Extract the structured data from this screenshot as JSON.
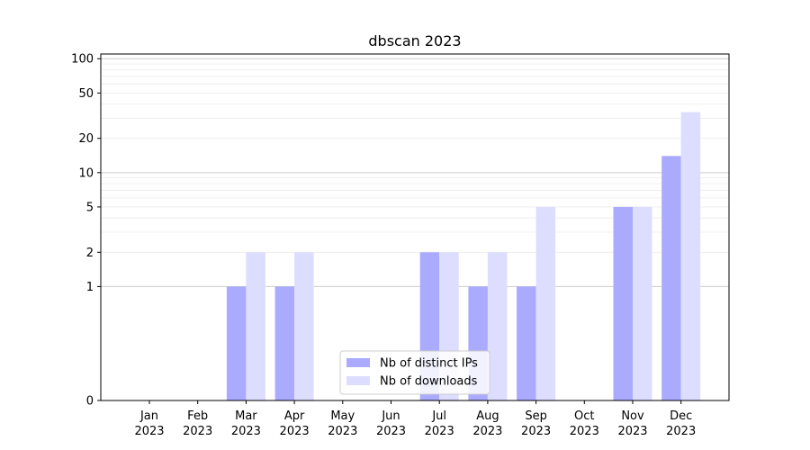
{
  "chart_data": {
    "type": "bar",
    "title": "dbscan 2023",
    "xlabel": "",
    "ylabel": "",
    "yscale": "symlog",
    "ylim": [
      0,
      110
    ],
    "yticks": [
      0,
      1,
      2,
      5,
      10,
      20,
      50,
      100
    ],
    "grid": "y",
    "legend_position": "bottom-center",
    "categories": [
      "Jan\n2023",
      "Feb\n2023",
      "Mar\n2023",
      "Apr\n2023",
      "May\n2023",
      "Jun\n2023",
      "Jul\n2023",
      "Aug\n2023",
      "Sep\n2023",
      "Oct\n2023",
      "Nov\n2023",
      "Dec\n2023"
    ],
    "series": [
      {
        "name": "Nb of distinct IPs",
        "color": "#aaaaff",
        "values": [
          0,
          0,
          1,
          1,
          0,
          0,
          2,
          1,
          1,
          0,
          5,
          14
        ]
      },
      {
        "name": "Nb of downloads",
        "color": "#ddddff",
        "values": [
          0,
          0,
          2,
          2,
          0,
          0,
          2,
          2,
          5,
          0,
          5,
          34
        ]
      }
    ]
  }
}
